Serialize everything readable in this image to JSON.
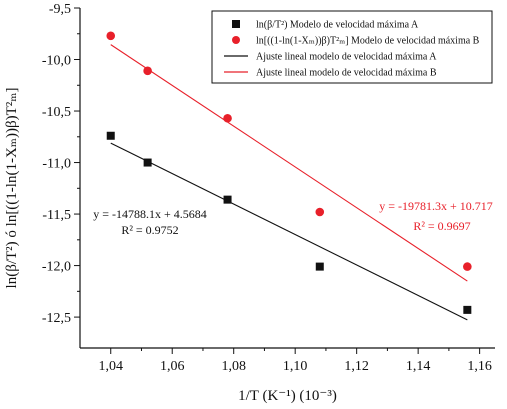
{
  "chart_data": {
    "type": "scatter",
    "xlabel": "1/T (K⁻¹) (10⁻³)",
    "ylabel": "ln(β/T²) ó ln[((1-ln(1-Xₘ))β)T²ₘ]",
    "xlim": [
      1.03,
      1.165
    ],
    "ylim": [
      -12.8,
      -9.5
    ],
    "x_ticks": [
      1.04,
      1.06,
      1.08,
      1.1,
      1.12,
      1.14,
      1.16
    ],
    "x_tick_labels": [
      "1,04",
      "1,06",
      "1,08",
      "1,10",
      "1,12",
      "1,14",
      "1,16"
    ],
    "y_ticks": [
      -9.5,
      -10.0,
      -10.5,
      -11.0,
      -11.5,
      -12.0,
      -12.5
    ],
    "y_tick_labels": [
      "-9,5",
      "-10,0",
      "-10,5",
      "-11,0",
      "-11,5",
      "-12,0",
      "-12,5"
    ],
    "grid": false,
    "legend_position": "top-right",
    "series": [
      {
        "name": "ln(β/T²) Modelo de velocidad máxima A",
        "marker": "square",
        "color": "#111111",
        "x": [
          1.04,
          1.052,
          1.078,
          1.108,
          1.156
        ],
        "y": [
          -10.74,
          -11.0,
          -11.36,
          -12.01,
          -12.43
        ]
      },
      {
        "name": "ln[((1-ln(1-Xₘ))β)T²ₘ] Modelo de velocidad máxima B",
        "marker": "circle",
        "color": "#e8202a",
        "x": [
          1.04,
          1.052,
          1.078,
          1.108,
          1.156
        ],
        "y": [
          -9.77,
          -10.11,
          -10.57,
          -11.48,
          -12.01
        ]
      }
    ],
    "fits": [
      {
        "name": "Ajuste lineal modelo de velocidad máxima A",
        "color": "#111111",
        "slope": -14788.1,
        "intercept": 4.5684,
        "x_range": [
          1.04,
          1.156
        ],
        "equation": "y = -14788.1x + 4.5684",
        "r2": "R² = 0.9752"
      },
      {
        "name": "Ajuste lineal modelo de velocidad máxima B",
        "color": "#e8202a",
        "slope": -19781.3,
        "intercept": 10.717,
        "x_range": [
          1.04,
          1.156
        ],
        "equation": "y = -19781.3x + 10.717",
        "r2": "R² = 0.9697"
      }
    ]
  }
}
